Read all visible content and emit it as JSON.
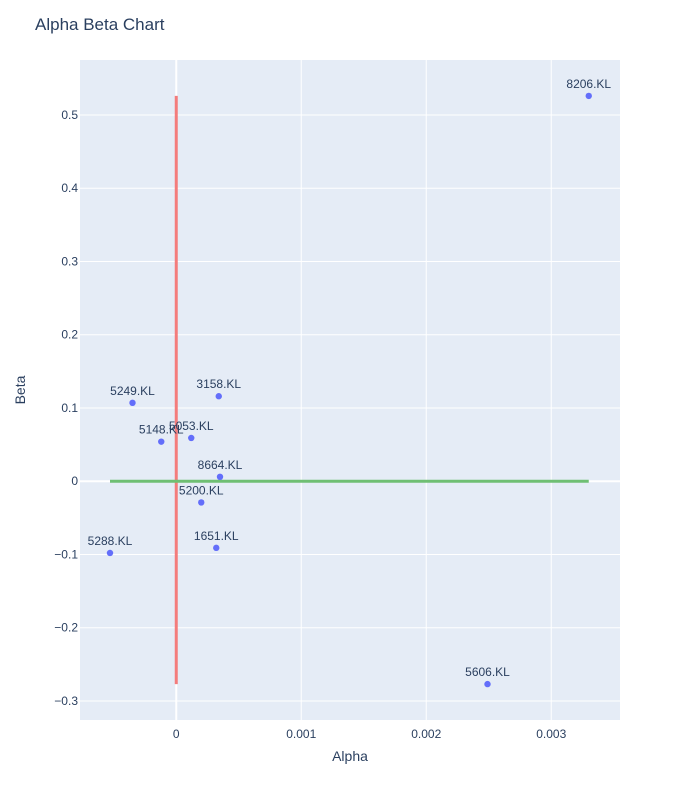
{
  "chart_data": {
    "type": "scatter",
    "title": "Alpha Beta Chart",
    "xlabel": "Alpha",
    "ylabel": "Beta",
    "xlim": [
      -0.00077,
      0.00355
    ],
    "ylim": [
      -0.326,
      0.575
    ],
    "x_ticks": [
      0,
      0.001,
      0.002,
      0.003
    ],
    "x_tick_labels": [
      "0",
      "0.001",
      "0.002",
      "0.003"
    ],
    "y_ticks": [
      -0.3,
      -0.2,
      -0.1,
      0,
      0.1,
      0.2,
      0.3,
      0.4,
      0.5
    ],
    "y_tick_labels": [
      "−0.3",
      "−0.2",
      "−0.1",
      "0",
      "0.1",
      "0.2",
      "0.3",
      "0.4",
      "0.5"
    ],
    "grid": true,
    "colors": {
      "plot_bg": "#e5ecf6",
      "grid": "#ffffff",
      "marker": "#636efa",
      "vertical_line": "#f47c7c",
      "horizontal_line": "#6fbf73",
      "text": "#2a3f5f"
    },
    "points": [
      {
        "label": "8206.KL",
        "x": 0.0033,
        "y": 0.526
      },
      {
        "label": "5249.KL",
        "x": -0.00035,
        "y": 0.107
      },
      {
        "label": "3158.KL",
        "x": 0.00034,
        "y": 0.116
      },
      {
        "label": "5148.KL",
        "x": -0.00012,
        "y": 0.054
      },
      {
        "label": "5053.KL",
        "x": 0.00012,
        "y": 0.059
      },
      {
        "label": "8664.KL",
        "x": 0.00035,
        "y": 0.006
      },
      {
        "label": "5200.KL",
        "x": 0.0002,
        "y": -0.029
      },
      {
        "label": "5288.KL",
        "x": -0.00053,
        "y": -0.098
      },
      {
        "label": "1651.KL",
        "x": 0.00032,
        "y": -0.091
      },
      {
        "label": "5606.KL",
        "x": 0.00249,
        "y": -0.277
      }
    ],
    "lines": [
      {
        "orientation": "vertical",
        "x": 0,
        "y_from": -0.277,
        "y_to": 0.526
      },
      {
        "orientation": "horizontal",
        "y": 0,
        "x_from": -0.00053,
        "x_to": 0.0033
      }
    ]
  }
}
